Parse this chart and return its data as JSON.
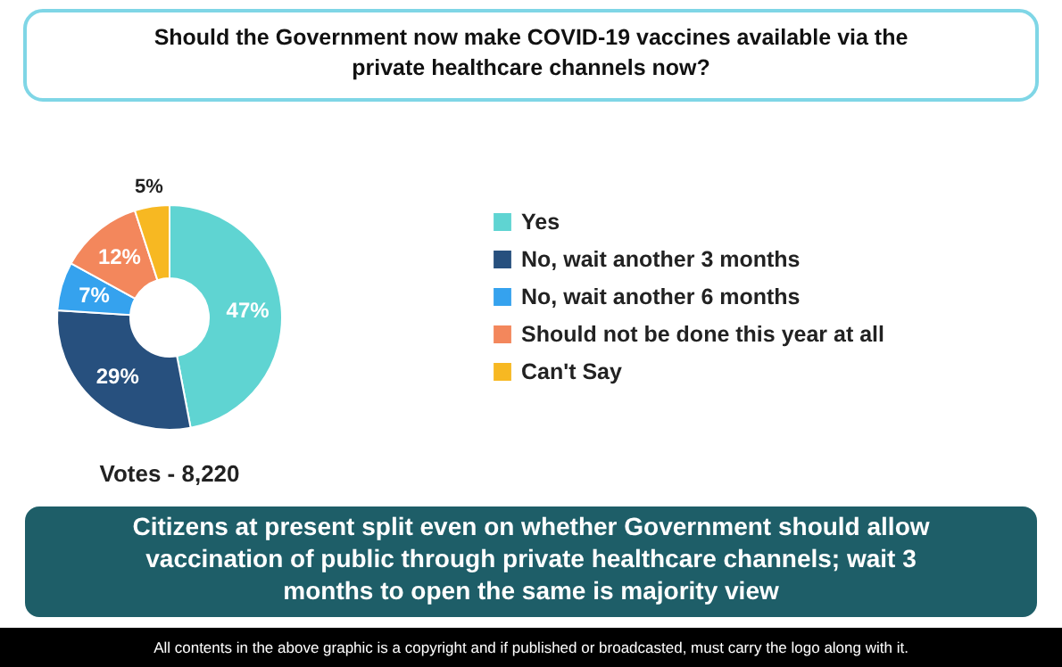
{
  "chart_data": {
    "type": "donut",
    "title": "Should the Government now make COVID-19 vaccines available via the private healthcare channels now?",
    "subtitle": "Citizens at present split even on whether Government should allow vaccination of public through private healthcare channels; wait 3 months to open the same is majority view",
    "categories": [
      "Yes",
      "No, wait another 3 months",
      "No, wait another 6 months",
      "Should not be done this year at all",
      "Can't Say"
    ],
    "values": [
      47,
      29,
      7,
      12,
      5
    ],
    "value_labels": [
      "47%",
      "29%",
      "7%",
      "12%",
      "5%"
    ],
    "colors": [
      "#5fd4d2",
      "#27507e",
      "#35a2ee",
      "#f3875c",
      "#f7b822"
    ],
    "legend": "right",
    "annotations": [
      "Votes - 8,220",
      "All contents in the above graphic is a copyright and if published or broadcasted, must carry the logo along with it."
    ]
  }
}
